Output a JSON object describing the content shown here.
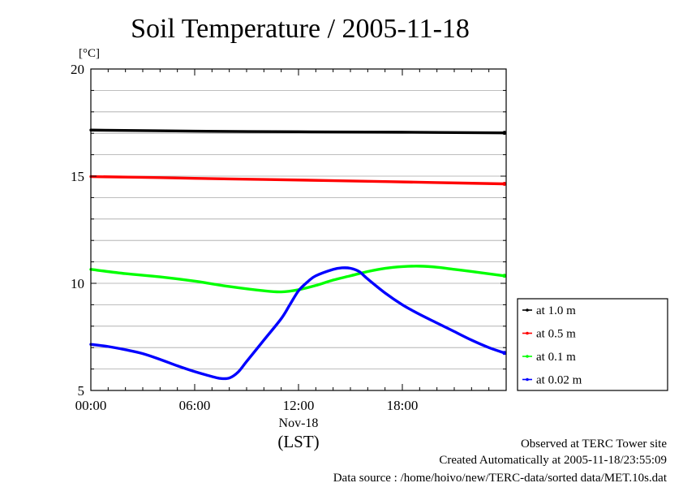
{
  "chart_data": {
    "type": "line",
    "title": "Soil Temperature / 2005-11-18",
    "ylabel": "[°C]",
    "xlabel": "(LST)",
    "date_label": "Nov-18",
    "ylim": [
      5,
      20
    ],
    "xlim": [
      0,
      23.9
    ],
    "yticks": [
      {
        "value": 5,
        "label": "5"
      },
      {
        "value": 10,
        "label": "10"
      },
      {
        "value": 15,
        "label": "15"
      },
      {
        "value": 20,
        "label": "20"
      }
    ],
    "xticks": [
      {
        "value": 0,
        "label": "00:00"
      },
      {
        "value": 6,
        "label": "06:00"
      },
      {
        "value": 12,
        "label": "12:00"
      },
      {
        "value": 18,
        "label": "18:00"
      }
    ],
    "grid": true,
    "legend_position": "right",
    "series": [
      {
        "name": "at 1.0 m",
        "color": "#000000",
        "x": [
          0,
          6,
          12,
          18,
          23.9
        ],
        "y": [
          17.15,
          17.1,
          17.07,
          17.05,
          17.02
        ]
      },
      {
        "name": "at 0.5 m",
        "color": "#ff0000",
        "x": [
          0,
          4,
          8,
          12,
          16,
          20,
          23.9
        ],
        "y": [
          14.98,
          14.93,
          14.87,
          14.82,
          14.76,
          14.7,
          14.64
        ]
      },
      {
        "name": "at 0.1 m",
        "color": "#00ff00",
        "x": [
          0,
          2,
          4,
          6,
          8,
          10,
          11,
          12,
          13,
          14,
          15,
          16,
          17,
          18,
          19,
          20,
          21,
          22,
          23.9
        ],
        "y": [
          10.65,
          10.45,
          10.3,
          10.1,
          9.85,
          9.65,
          9.6,
          9.7,
          9.9,
          10.15,
          10.35,
          10.55,
          10.7,
          10.78,
          10.8,
          10.75,
          10.65,
          10.55,
          10.35
        ]
      },
      {
        "name": "at 0.02 m",
        "color": "#0000ff",
        "x": [
          0,
          1,
          2,
          3,
          4,
          5,
          6,
          7,
          7.5,
          8,
          8.5,
          9,
          10,
          11,
          11.5,
          12,
          12.5,
          13,
          14,
          14.5,
          15,
          15.5,
          16,
          17,
          18,
          19,
          20,
          21,
          22,
          23,
          23.9
        ],
        "y": [
          7.15,
          7.05,
          6.9,
          6.72,
          6.45,
          6.15,
          5.88,
          5.65,
          5.56,
          5.58,
          5.85,
          6.35,
          7.35,
          8.35,
          9.0,
          9.65,
          10.05,
          10.35,
          10.65,
          10.72,
          10.7,
          10.55,
          10.2,
          9.55,
          9.0,
          8.55,
          8.15,
          7.75,
          7.35,
          7.0,
          6.75
        ]
      }
    ]
  },
  "footer": {
    "line1": "Observed at TERC Tower site",
    "line2": "Created Automatically at 2005-11-18/23:55:09",
    "line3": "Data source : /home/hoivo/new/TERC-data/sorted  data/MET.10s.dat"
  }
}
